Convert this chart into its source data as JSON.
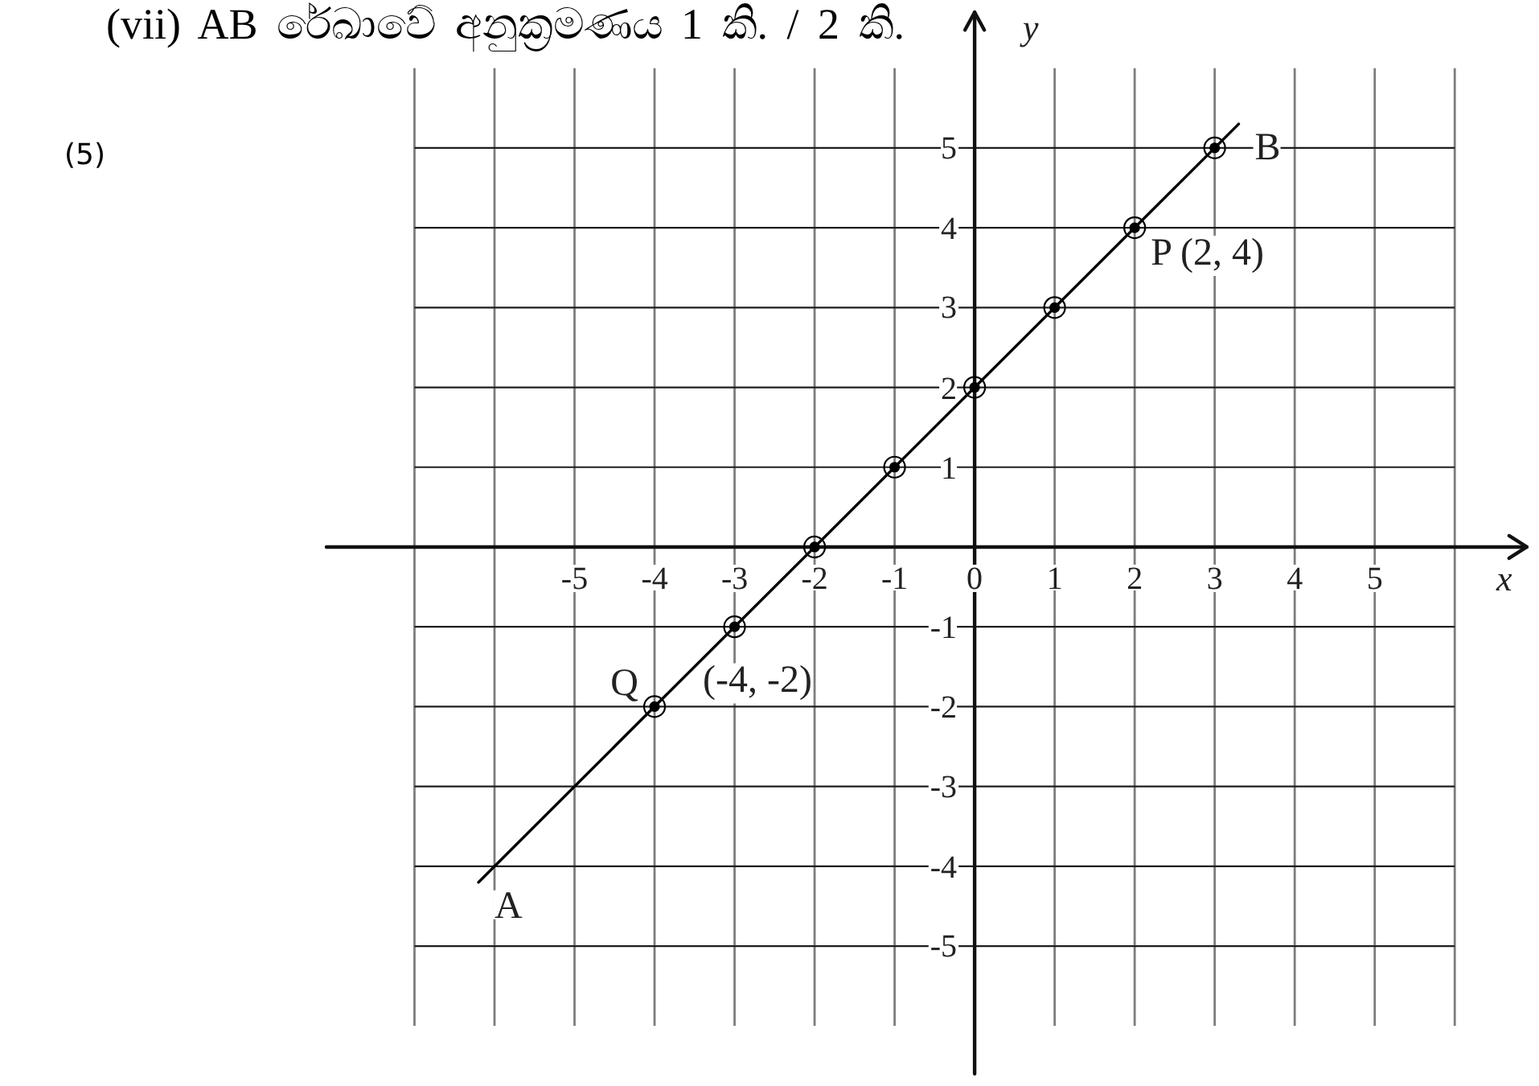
{
  "chart_data": {
    "type": "scatter",
    "title": "(vii) AB රේඛාවේ අනුක්‍රමණය 1 කි. / 2 කි.",
    "xlabel": "x",
    "ylabel": "y",
    "series": [
      {
        "type": "line",
        "color": "#000000",
        "marker": "none",
        "x": [
          -6.2,
          3.3
        ],
        "values": [
          -4.2,
          5.3
        ]
      },
      {
        "type": "scatter",
        "color": "#000000",
        "x": [
          -4,
          -3,
          -2,
          -1,
          0,
          1,
          2,
          3
        ],
        "values": [
          -2,
          -1,
          0,
          1,
          2,
          3,
          4,
          5
        ]
      }
    ],
    "xlim": [
      -8.1,
      6.9
    ],
    "ylim": [
      -6.6,
      6.7
    ],
    "xticks": [
      {
        "value": -7,
        "label": null
      },
      {
        "value": -6,
        "label": null
      },
      -5,
      -4,
      -3,
      -2,
      -1,
      0,
      1,
      2,
      3,
      4,
      5,
      {
        "value": 6,
        "label": null
      }
    ],
    "yticks": [
      -5,
      -4,
      -3,
      -2,
      -1,
      1,
      2,
      3,
      4,
      5
    ],
    "grid": true,
    "marker": "circle",
    "line_style": "solid",
    "annotations": [
      "(5)",
      {
        "text": "A",
        "x": -6.2,
        "y": -4.2
      },
      {
        "text": "B",
        "x": 3.3,
        "y": 5.3
      },
      {
        "text": "P (2, 4)",
        "x": 2,
        "y": 4
      },
      {
        "text": "Q",
        "x": -4,
        "y": -2
      },
      {
        "text": "(-4, -2)",
        "x": -4,
        "y": -2
      }
    ]
  }
}
